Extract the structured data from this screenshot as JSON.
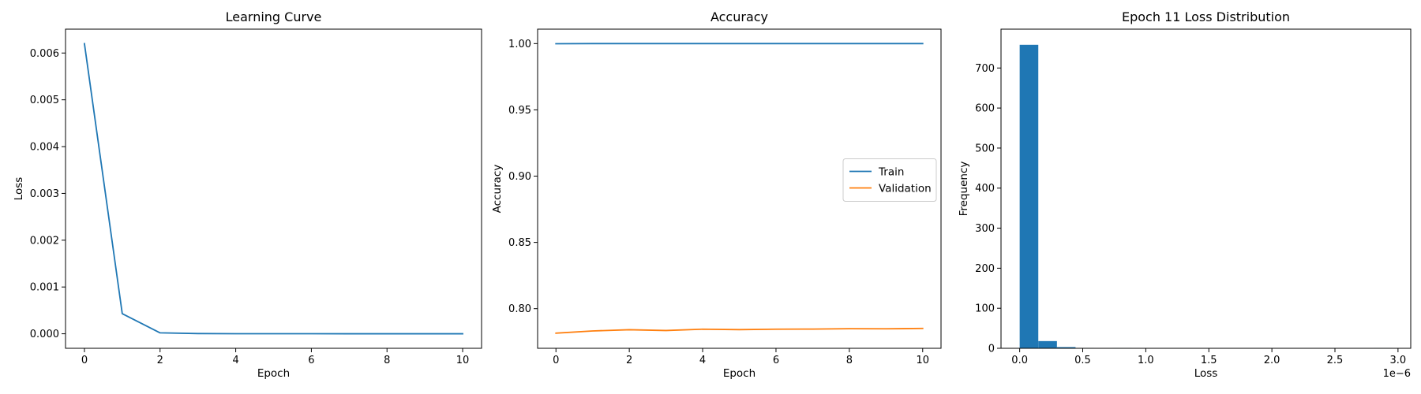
{
  "chart_data": [
    {
      "type": "line",
      "title": "Learning Curve",
      "xlabel": "Epoch",
      "ylabel": "Loss",
      "xlim": [
        -0.5,
        10.5
      ],
      "ylim": [
        -0.00031,
        0.00651
      ],
      "xticks": [
        0,
        2,
        4,
        6,
        8,
        10
      ],
      "xtick_labels": [
        "0",
        "2",
        "4",
        "6",
        "8",
        "10"
      ],
      "yticks": [
        0.0,
        0.001,
        0.002,
        0.003,
        0.004,
        0.005,
        0.006
      ],
      "ytick_labels": [
        "0.000",
        "0.001",
        "0.002",
        "0.003",
        "0.004",
        "0.005",
        "0.006"
      ],
      "grid": false,
      "series": [
        {
          "color": "#1f77b4",
          "x": [
            0,
            1,
            2,
            3,
            4,
            5,
            6,
            7,
            8,
            9,
            10
          ],
          "y": [
            0.0062,
            0.00043,
            2e-05,
            5e-06,
            2e-06,
            1e-06,
            1e-06,
            5e-07,
            4e-07,
            3e-07,
            2e-07
          ]
        }
      ]
    },
    {
      "type": "line",
      "title": "Accuracy",
      "xlabel": "Epoch",
      "ylabel": "Accuracy",
      "xlim": [
        -0.5,
        10.5
      ],
      "ylim": [
        0.7701,
        1.0109
      ],
      "xticks": [
        0,
        2,
        4,
        6,
        8,
        10
      ],
      "xtick_labels": [
        "0",
        "2",
        "4",
        "6",
        "8",
        "10"
      ],
      "yticks": [
        0.8,
        0.85,
        0.9,
        0.95,
        1.0
      ],
      "ytick_labels": [
        "0.80",
        "0.85",
        "0.90",
        "0.95",
        "1.00"
      ],
      "grid": false,
      "legend_position": "right",
      "series": [
        {
          "name": "Train",
          "color": "#1f77b4",
          "x": [
            0,
            1,
            2,
            3,
            4,
            5,
            6,
            7,
            8,
            9,
            10
          ],
          "y": [
            0.9999,
            1.0,
            1.0,
            1.0,
            1.0,
            1.0,
            1.0,
            1.0,
            1.0,
            1.0,
            1.0
          ]
        },
        {
          "name": "Validation",
          "color": "#ff7f0e",
          "x": [
            0,
            1,
            2,
            3,
            4,
            5,
            6,
            7,
            8,
            9,
            10
          ],
          "y": [
            0.7815,
            0.7832,
            0.7841,
            0.7835,
            0.7845,
            0.7842,
            0.7845,
            0.7846,
            0.7849,
            0.7848,
            0.7851
          ]
        }
      ]
    },
    {
      "type": "bar",
      "subtype": "histogram",
      "title": "Epoch 11 Loss Distribution",
      "xlabel": "Loss",
      "ylabel": "Frequency",
      "x_offset_label": "1e−6",
      "xlim": [
        -0.148,
        3.101
      ],
      "ylim": [
        0,
        797
      ],
      "xticks": [
        0.0,
        0.5,
        1.0,
        1.5,
        2.0,
        2.5,
        3.0
      ],
      "xtick_labels": [
        "0.0",
        "0.5",
        "1.0",
        "1.5",
        "2.0",
        "2.5",
        "3.0"
      ],
      "yticks": [
        0,
        100,
        200,
        300,
        400,
        500,
        600,
        700
      ],
      "ytick_labels": [
        "0",
        "100",
        "200",
        "300",
        "400",
        "500",
        "600",
        "700"
      ],
      "grid": false,
      "color": "#1f77b4",
      "bin_edges": [
        0.0,
        0.1477,
        0.2954,
        0.4431,
        0.5908,
        0.7385,
        0.8862,
        1.0339,
        1.1816,
        1.3293,
        1.477,
        1.6247,
        1.7724,
        1.9201,
        2.0678,
        2.2155,
        2.3632,
        2.5109,
        2.6586,
        2.8063,
        2.954
      ],
      "counts": [
        758,
        18,
        3,
        1,
        0,
        1,
        0,
        0,
        0,
        0,
        0,
        0,
        0,
        0,
        0,
        0,
        0,
        0,
        0,
        1
      ]
    }
  ]
}
